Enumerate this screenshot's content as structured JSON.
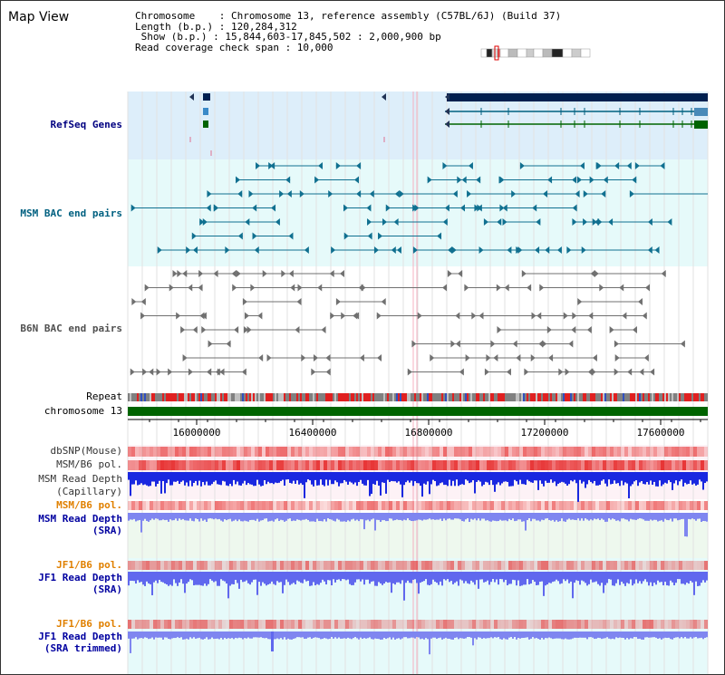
{
  "title": "Map View",
  "info": {
    "chromosome": "Chromosome    : Chromosome 13, reference assembly (C57BL/6J) (Build 37)",
    "length": "Length (b.p.) : 120,284,312",
    "show": " Show (b.p.) : 15,844,603-17,845,502 : 2,000,900 bp",
    "coverage": "Read coverage check span : 10,000"
  },
  "tracks": {
    "refseq": "RefSeq Genes",
    "msm_bac": "MSM BAC end pairs",
    "b6n_bac": "B6N BAC end pairs",
    "repeat": "Repeat",
    "chromosome": "chromosome 13",
    "dbsnp": "dbSNP(Mouse)",
    "msm_b6_pol1": "MSM/B6 pol.",
    "msm_depth_cap": "MSM Read Depth",
    "msm_depth_cap_sub": "(Capillary)",
    "msm_b6_pol2": "MSM/B6 pol.",
    "msm_depth_sra": "MSM Read Depth",
    "msm_depth_sra_sub": "(SRA)",
    "jf1_b6_pol1": "JF1/B6 pol.",
    "jf1_depth_sra": "JF1 Read Depth",
    "jf1_depth_sra_sub": "(SRA)",
    "jf1_b6_pol2": "JF1/B6 pol.",
    "jf1_depth_trim": "JF1 Read Depth",
    "jf1_depth_trim_sub": "(SRA trimmed)"
  },
  "axis_ticks": [
    "16000000",
    "16400000",
    "16800000",
    "17200000",
    "17600000"
  ],
  "colors": {
    "refseq_label": "#000080",
    "msm_bac_label": "#006080",
    "b6n_bac_label": "#505050",
    "orange_label": "#e08000",
    "blue_label": "#0000a0",
    "chromosome_bar": "#006400"
  }
}
